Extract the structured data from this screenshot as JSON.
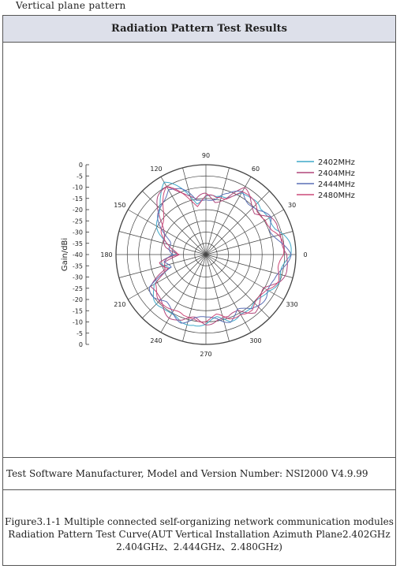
{
  "top_note": "Vertical plane pattern",
  "table_header": "Radiation Pattern Test Results",
  "software_line": "Test Software Manufacturer, Model and Version Number: NSI2000 V4.9.99",
  "caption": {
    "line1": "Figure3.1-1  Multiple connected self-organizing network communication modules",
    "line2": "Radiation Pattern Test Curve(AUT Vertical Installation Azimuth Plane2.402GHz",
    "line3": "2.404GHz、2.444GHz、2.480GHz)"
  },
  "chart_data": {
    "type": "polar",
    "ylabel": "Gain/dBi",
    "radial_ticks": [
      "0",
      "-5",
      "-10",
      "-15",
      "-20",
      "-25",
      "-30",
      "-35",
      "-40",
      "-35",
      "-30",
      "-25",
      "-20",
      "-15",
      "-10",
      "-5",
      "0"
    ],
    "rlim": [
      -40,
      0
    ],
    "angle_labels": [
      "0",
      "30",
      "60",
      "90",
      "120",
      "150",
      "180",
      "210",
      "240",
      "270",
      "300",
      "330"
    ],
    "grid": true,
    "legend_position": "top-right",
    "series": [
      {
        "name": "2402MHz",
        "color": "#3fa9c9"
      },
      {
        "name": "2404MHz",
        "color": "#b0467a"
      },
      {
        "name": "2444MHz",
        "color": "#5a6fb5"
      },
      {
        "name": "2480MHz",
        "color": "#cc4a78"
      }
    ],
    "angles_deg": [
      0,
      10,
      20,
      30,
      40,
      50,
      60,
      70,
      80,
      90,
      100,
      110,
      120,
      130,
      140,
      150,
      160,
      170,
      180,
      190,
      200,
      210,
      220,
      230,
      240,
      250,
      260,
      270,
      280,
      290,
      300,
      310,
      320,
      330,
      340,
      350
    ],
    "gain_dbi": [
      -3,
      -5,
      -7,
      -6,
      -9,
      -8,
      -6,
      -12,
      -15,
      -14,
      -16,
      -10,
      -5,
      -8,
      -12,
      -16,
      -20,
      -22,
      -26,
      -20,
      -22,
      -12,
      -11,
      -11,
      -9,
      -8,
      -10,
      -9,
      -10,
      -8,
      -10,
      -7,
      -8,
      -9,
      -6,
      -5
    ]
  }
}
